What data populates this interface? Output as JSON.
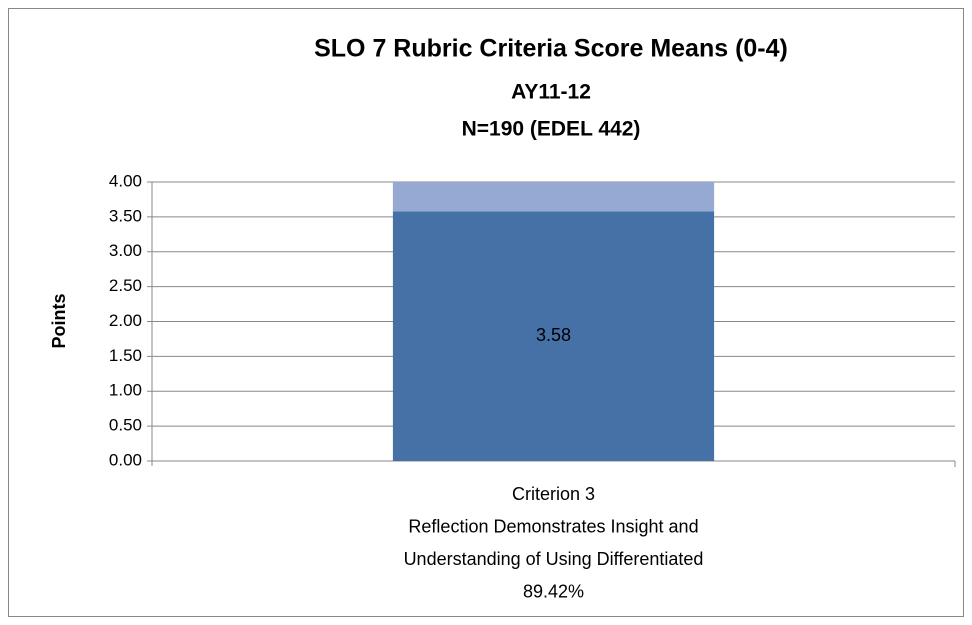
{
  "chart_data": {
    "type": "stacked-bar",
    "title": "SLO 7 Rubric Criteria Score Means (0-4)",
    "subtitle": [
      "AY11-12",
      "N=190 (EDEL 442)"
    ],
    "ylabel": "Points",
    "categories": [
      [
        "Criterion 3",
        "Reflection Demonstrates Insight and",
        "Understanding of Using Differentiated",
        "89.42%"
      ]
    ],
    "series": [
      {
        "color": "#4671a6",
        "values": [
          3.58
        ],
        "value_labels": [
          "3.58"
        ]
      },
      {
        "color": "#95a9d2",
        "values": [
          0.42
        ]
      }
    ],
    "ylim": [
      0,
      4
    ],
    "yticks": [
      {
        "value": 0,
        "label": "0.00"
      },
      {
        "value": 0.5,
        "label": "0.50"
      },
      {
        "value": 1,
        "label": "1.00"
      },
      {
        "value": 1.5,
        "label": "1.50"
      },
      {
        "value": 2,
        "label": "2.00"
      },
      {
        "value": 2.5,
        "label": "2.50"
      },
      {
        "value": 3,
        "label": "3.00"
      },
      {
        "value": 3.5,
        "label": "3.50"
      },
      {
        "value": 4,
        "label": "4.00"
      }
    ],
    "grid": true
  }
}
